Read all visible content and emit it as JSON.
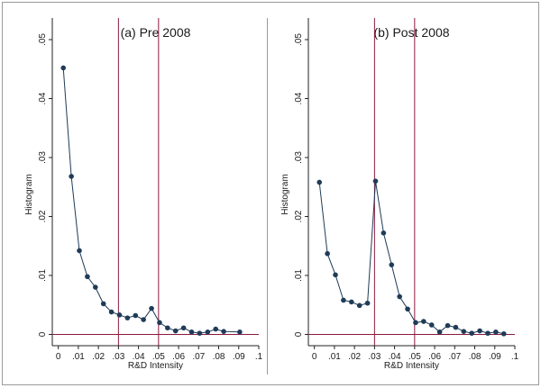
{
  "colors": {
    "series": "#1f3b57",
    "ref_lines": "#8b1a3d",
    "frame": "#9a9a9a"
  },
  "chart_data": [
    {
      "type": "line",
      "title": "(a) Pre 2008",
      "xlabel": "R&D Intensity",
      "ylabel": "Histogram",
      "xlim": [
        -0.003,
        0.1
      ],
      "ylim": [
        -0.001,
        0.05
      ],
      "xticks": [
        0,
        0.01,
        0.02,
        0.03,
        0.04,
        0.05,
        0.06,
        0.07,
        0.08,
        0.09,
        0.1
      ],
      "xtick_labels": [
        "0",
        ".01",
        ".02",
        ".03",
        ".04",
        ".05",
        ".06",
        ".07",
        ".08",
        ".09",
        ".1"
      ],
      "yticks": [
        0,
        0.01,
        0.02,
        0.03,
        0.04,
        0.05
      ],
      "ytick_labels": [
        "0",
        ".01",
        ".02",
        ".03",
        ".04",
        ".05"
      ],
      "vertical_lines": [
        0.03,
        0.05
      ],
      "horizontal_lines": [
        0
      ],
      "grid": false,
      "legend": "none",
      "x": [
        0.0025,
        0.0065,
        0.0105,
        0.0145,
        0.0185,
        0.0225,
        0.0265,
        0.0305,
        0.0345,
        0.0385,
        0.0425,
        0.0465,
        0.0505,
        0.0545,
        0.0585,
        0.0625,
        0.0665,
        0.0705,
        0.0745,
        0.0785,
        0.0825,
        0.0905
      ],
      "values": [
        0.0452,
        0.0268,
        0.0142,
        0.0098,
        0.008,
        0.0052,
        0.0038,
        0.0033,
        0.0028,
        0.0032,
        0.0025,
        0.0044,
        0.002,
        0.0011,
        0.0006,
        0.0011,
        0.0004,
        0.0002,
        0.0004,
        0.0009,
        0.0005,
        0.0004
      ]
    },
    {
      "type": "line",
      "title": "(b) Post 2008",
      "xlabel": "R&D Intensity",
      "ylabel": "Histogram",
      "xlim": [
        -0.003,
        0.1
      ],
      "ylim": [
        -0.001,
        0.05
      ],
      "xticks": [
        0,
        0.01,
        0.02,
        0.03,
        0.04,
        0.05,
        0.06,
        0.07,
        0.08,
        0.09,
        0.1
      ],
      "xtick_labels": [
        "0",
        ".01",
        ".02",
        ".03",
        ".04",
        ".05",
        ".06",
        ".07",
        ".08",
        ".09",
        ".1"
      ],
      "yticks": [
        0,
        0.01,
        0.02,
        0.03,
        0.04,
        0.05
      ],
      "ytick_labels": [
        "0",
        ".01",
        ".02",
        ".03",
        ".04",
        ".05"
      ],
      "vertical_lines": [
        0.03,
        0.05
      ],
      "horizontal_lines": [
        0
      ],
      "grid": false,
      "legend": "none",
      "x": [
        0.0025,
        0.0065,
        0.0105,
        0.0145,
        0.0185,
        0.0225,
        0.0265,
        0.0305,
        0.0345,
        0.0385,
        0.0425,
        0.0465,
        0.0505,
        0.0545,
        0.0585,
        0.0625,
        0.0665,
        0.0705,
        0.0745,
        0.0785,
        0.0825,
        0.0865,
        0.0905,
        0.0945
      ],
      "values": [
        0.0258,
        0.0137,
        0.0101,
        0.0058,
        0.0055,
        0.0049,
        0.0053,
        0.026,
        0.0172,
        0.0118,
        0.0064,
        0.0043,
        0.002,
        0.0022,
        0.0016,
        0.0004,
        0.0015,
        0.0012,
        0.0005,
        0.0002,
        0.0006,
        0.0002,
        0.0004,
        0.0001
      ]
    }
  ]
}
